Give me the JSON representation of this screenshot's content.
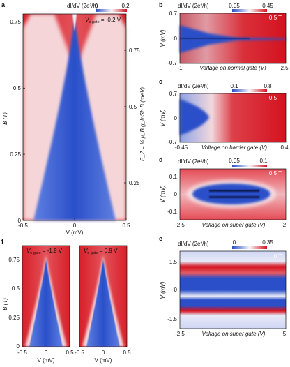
{
  "colors": {
    "blue": "#2a4fc9",
    "white": "#f7f7f7",
    "red": "#d4121f"
  },
  "panels": [
    {
      "id": "a",
      "label": "a",
      "colorbar": {
        "title": "dI/dV (2e²/h)",
        "ticks": [
          "0",
          "0.2"
        ]
      },
      "annotation": "V",
      "annotation_sub": "s-gate",
      "annotation_value": " = -0.2 V",
      "xlabel": "V (mV)",
      "ylabel": "B (T)",
      "xticks": [
        "-0.5",
        "0",
        "0.5"
      ],
      "yticks": [
        "0",
        "0.25",
        "0.5",
        "0.75"
      ],
      "right_ylabel": "E_Z = ½ μ_B g_InSb B (meV)",
      "right_yticks": [
        "0.25",
        "0.5",
        "0.75"
      ]
    },
    {
      "id": "b",
      "label": "b",
      "colorbar": {
        "title": "dI/dV (2e²/h)",
        "ticks": [
          "0.05",
          "0.45"
        ]
      },
      "field": "0.5 T",
      "xlabel": "Voltage on normal gate (V)",
      "ylabel": "V (mV)",
      "xticks": [
        "-1",
        "0",
        "2.5"
      ],
      "yticks": [
        "-0.7",
        "0",
        "0.7"
      ]
    },
    {
      "id": "c",
      "label": "c",
      "colorbar": {
        "title": "dI/dV (2e²/h)",
        "ticks": [
          "0.1",
          "0.8"
        ]
      },
      "field": "0.5 T",
      "xlabel": "Voltage on barrier gate (V)",
      "ylabel": "V (mV)",
      "xticks": [
        "-0.45",
        "0",
        "0.4"
      ],
      "yticks": [
        "-0.7",
        "0",
        "0.7"
      ]
    },
    {
      "id": "d",
      "label": "d",
      "colorbar": {
        "title": "dI/dV (2e²/h)",
        "ticks": [
          "0.05",
          "0.1"
        ]
      },
      "field": "0.5 T",
      "xlabel": "Voltage on super gate (V)",
      "ylabel": "V (mV)",
      "xticks": [
        "-2.5",
        "0",
        "2"
      ],
      "yticks": [
        "-0.1",
        "0",
        "0.1"
      ]
    },
    {
      "id": "e",
      "label": "e",
      "colorbar": {
        "title": "dI/dV (2e²/h)",
        "ticks": [
          "0",
          "0.35"
        ]
      },
      "field": "0 T",
      "xlabel": "Voltage on super gate (V)",
      "ylabel": "V (mV)",
      "xticks": [
        "-2.5",
        "0",
        "5"
      ],
      "yticks": [
        "-1.5",
        "0",
        "1.5"
      ]
    },
    {
      "id": "f",
      "label": "f",
      "ylabel": "B (T)",
      "yticks": [
        "0",
        "0.25",
        "0.5",
        "0.75"
      ],
      "subpanels": [
        {
          "annotation": "V",
          "annotation_sub": "s-gate",
          "annotation_value": " = -1.9 V",
          "xlabel": "V (mV)",
          "xticks": [
            "-0.5",
            "0",
            "0.5"
          ]
        },
        {
          "annotation": "V",
          "annotation_sub": "s-gate",
          "annotation_value": " = 0.9 V",
          "xlabel": "V (mV)",
          "xticks": [
            "-0.5",
            "0",
            "0.5"
          ]
        }
      ]
    }
  ],
  "chart_data": [
    {
      "type": "heatmap",
      "panel": "a",
      "x": "V (mV)",
      "y": "B (T)",
      "xlim": [
        -0.5,
        0.5
      ],
      "ylim": [
        0,
        0.78
      ],
      "zlim": [
        0,
        0.2
      ],
      "description_of_features": []
    },
    {
      "type": "heatmap",
      "panel": "b",
      "xlim": [
        -1,
        2.5
      ],
      "ylim": [
        -0.7,
        0.7
      ],
      "zlim": [
        0.05,
        0.45
      ]
    },
    {
      "type": "heatmap",
      "panel": "c",
      "xlim": [
        -0.45,
        0.4
      ],
      "ylim": [
        -0.7,
        0.7
      ],
      "zlim": [
        0.1,
        0.8
      ]
    },
    {
      "type": "heatmap",
      "panel": "d",
      "xlim": [
        -2.5,
        2
      ],
      "ylim": [
        -0.12,
        0.12
      ],
      "zlim": [
        0.05,
        0.1
      ]
    },
    {
      "type": "heatmap",
      "panel": "e",
      "xlim": [
        -2.5,
        5
      ],
      "ylim": [
        -1.8,
        1.8
      ],
      "zlim": [
        0,
        0.35
      ]
    },
    {
      "type": "heatmap",
      "panel": "f1",
      "xlim": [
        -0.5,
        0.5
      ],
      "ylim": [
        0,
        0.78
      ]
    },
    {
      "type": "heatmap",
      "panel": "f2",
      "xlim": [
        -0.5,
        0.5
      ],
      "ylim": [
        0,
        0.78
      ]
    }
  ]
}
